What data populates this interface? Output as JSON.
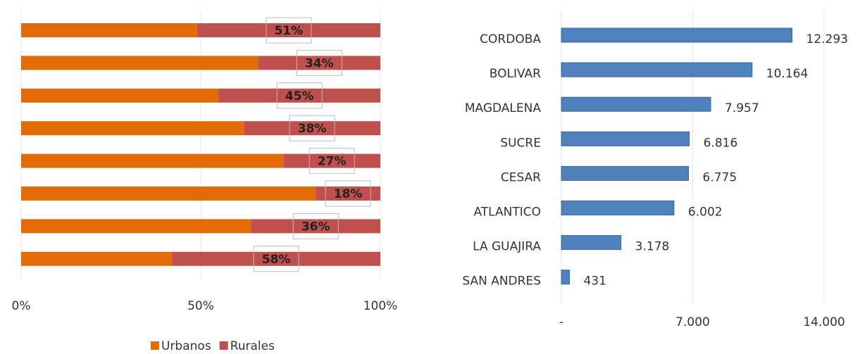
{
  "chart_data": [
    {
      "type": "stacked-bar-h",
      "categories": [
        null,
        null,
        null,
        null,
        null,
        null,
        null,
        null
      ],
      "series": [
        {
          "name": "Urbanos",
          "color": "#e36c09",
          "values": [
            49,
            66,
            55,
            62,
            73,
            82,
            64,
            42
          ]
        },
        {
          "name": "Rurales",
          "color": "#c0504d",
          "values": [
            51,
            34,
            45,
            38,
            27,
            18,
            36,
            58
          ],
          "value_labels": [
            "51%",
            "34%",
            "45%",
            "38%",
            "27%",
            "18%",
            "36%",
            "58%"
          ]
        }
      ],
      "xlim": [
        0,
        100
      ],
      "xticks": [
        {
          "value": 0,
          "label": "0%"
        },
        {
          "value": 50,
          "label": "50%"
        },
        {
          "value": 100,
          "label": "100%"
        }
      ],
      "grid": true,
      "legend": "bottom"
    },
    {
      "type": "bar-h",
      "categories": [
        "CORDOBA",
        "BOLIVAR",
        "MAGDALENA",
        "SUCRE",
        "CESAR",
        "ATLANTICO",
        "LA GUAJIRA",
        "SAN ANDRES"
      ],
      "values": [
        12293,
        10164,
        7957,
        6816,
        6775,
        6002,
        3178,
        431
      ],
      "value_labels": [
        "12.293",
        "10.164",
        "7.957",
        "6.816",
        "6.775",
        "6.002",
        "3.178",
        "431"
      ],
      "color": "#4f81bd",
      "xlim": [
        0,
        14000
      ],
      "xticks": [
        {
          "value": 0,
          "label": "-"
        },
        {
          "value": 7000,
          "label": "7.000"
        },
        {
          "value": 14000,
          "label": "14.000"
        }
      ],
      "grid": true
    }
  ]
}
